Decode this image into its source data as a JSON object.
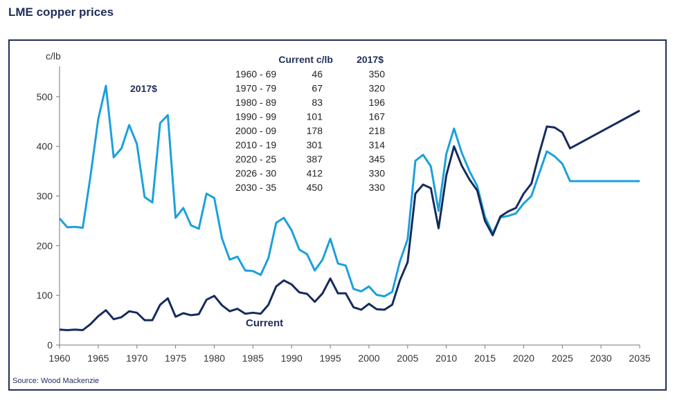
{
  "chart_data": {
    "type": "line",
    "title": "LME copper prices",
    "ylabel": "c/lb",
    "source": "Source: Wood Mackenzie",
    "xlim": [
      1960,
      2035
    ],
    "ylim": [
      0,
      550
    ],
    "xticks": [
      1960,
      1965,
      1970,
      1975,
      1980,
      1985,
      1990,
      1995,
      2000,
      2005,
      2010,
      2015,
      2020,
      2025,
      2030,
      2035
    ],
    "yticks": [
      0,
      100,
      200,
      300,
      400,
      500
    ],
    "grid": false,
    "legend": "inline labels",
    "series": [
      {
        "name": "2017$",
        "color": "#1aa0dc",
        "x": [
          1960,
          1961,
          1962,
          1963,
          1964,
          1965,
          1966,
          1967,
          1968,
          1969,
          1970,
          1971,
          1972,
          1973,
          1974,
          1975,
          1976,
          1977,
          1978,
          1979,
          1980,
          1981,
          1982,
          1983,
          1984,
          1985,
          1986,
          1987,
          1988,
          1989,
          1990,
          1991,
          1992,
          1993,
          1994,
          1995,
          1996,
          1997,
          1998,
          1999,
          2000,
          2001,
          2002,
          2003,
          2004,
          2005,
          2006,
          2007,
          2008,
          2009,
          2010,
          2011,
          2012,
          2013,
          2014,
          2015,
          2016,
          2017,
          2018,
          2019,
          2020,
          2021,
          2022,
          2023,
          2024,
          2025,
          2026,
          2035
        ],
        "values": [
          255,
          237,
          238,
          236,
          340,
          455,
          522,
          378,
          396,
          443,
          405,
          298,
          287,
          447,
          463,
          256,
          276,
          241,
          234,
          305,
          296,
          215,
          172,
          178,
          150,
          149,
          141,
          175,
          246,
          256,
          231,
          192,
          183,
          150,
          172,
          214,
          164,
          160,
          113,
          108,
          118,
          101,
          98,
          107,
          168,
          213,
          371,
          383,
          360,
          270,
          385,
          436,
          387,
          350,
          320,
          258,
          225,
          257,
          260,
          265,
          285,
          300,
          345,
          390,
          380,
          365,
          330,
          330
        ]
      },
      {
        "name": "Current",
        "color": "#152b5c",
        "x": [
          1960,
          1961,
          1962,
          1963,
          1964,
          1965,
          1966,
          1967,
          1968,
          1969,
          1970,
          1971,
          1972,
          1973,
          1974,
          1975,
          1976,
          1977,
          1978,
          1979,
          1980,
          1981,
          1982,
          1983,
          1984,
          1985,
          1986,
          1987,
          1988,
          1989,
          1990,
          1991,
          1992,
          1993,
          1994,
          1995,
          1996,
          1997,
          1998,
          1999,
          2000,
          2001,
          2002,
          2003,
          2004,
          2005,
          2006,
          2007,
          2008,
          2009,
          2010,
          2011,
          2012,
          2013,
          2014,
          2015,
          2016,
          2017,
          2018,
          2019,
          2020,
          2021,
          2022,
          2023,
          2024,
          2025,
          2026,
          2035
        ],
        "values": [
          31,
          30,
          31,
          30,
          42,
          58,
          70,
          52,
          56,
          68,
          65,
          50,
          50,
          81,
          94,
          57,
          64,
          60,
          62,
          91,
          99,
          80,
          68,
          73,
          63,
          65,
          63,
          81,
          118,
          130,
          122,
          106,
          103,
          87,
          104,
          134,
          104,
          104,
          76,
          71,
          83,
          72,
          71,
          81,
          130,
          167,
          305,
          323,
          316,
          235,
          342,
          400,
          361,
          333,
          311,
          250,
          221,
          259,
          269,
          276,
          305,
          325,
          385,
          440,
          438,
          428,
          396,
          472
        ]
      }
    ],
    "annotations": {
      "series_label_real": "2017$",
      "series_label_nominal": "Current",
      "table": {
        "header": [
          "",
          "Current c/lb",
          "2017$"
        ],
        "rows": [
          [
            "1960 - 69",
            "46",
            "350"
          ],
          [
            "1970 - 79",
            "67",
            "320"
          ],
          [
            "1980 - 89",
            "83",
            "196"
          ],
          [
            "1990 - 99",
            "101",
            "167"
          ],
          [
            "2000 - 09",
            "178",
            "218"
          ],
          [
            "2010 - 19",
            "301",
            "314"
          ],
          [
            "2020 - 25",
            "387",
            "345"
          ],
          [
            "2026 - 30",
            "412",
            "330"
          ],
          [
            "2030 - 35",
            "450",
            "330"
          ]
        ]
      }
    }
  }
}
